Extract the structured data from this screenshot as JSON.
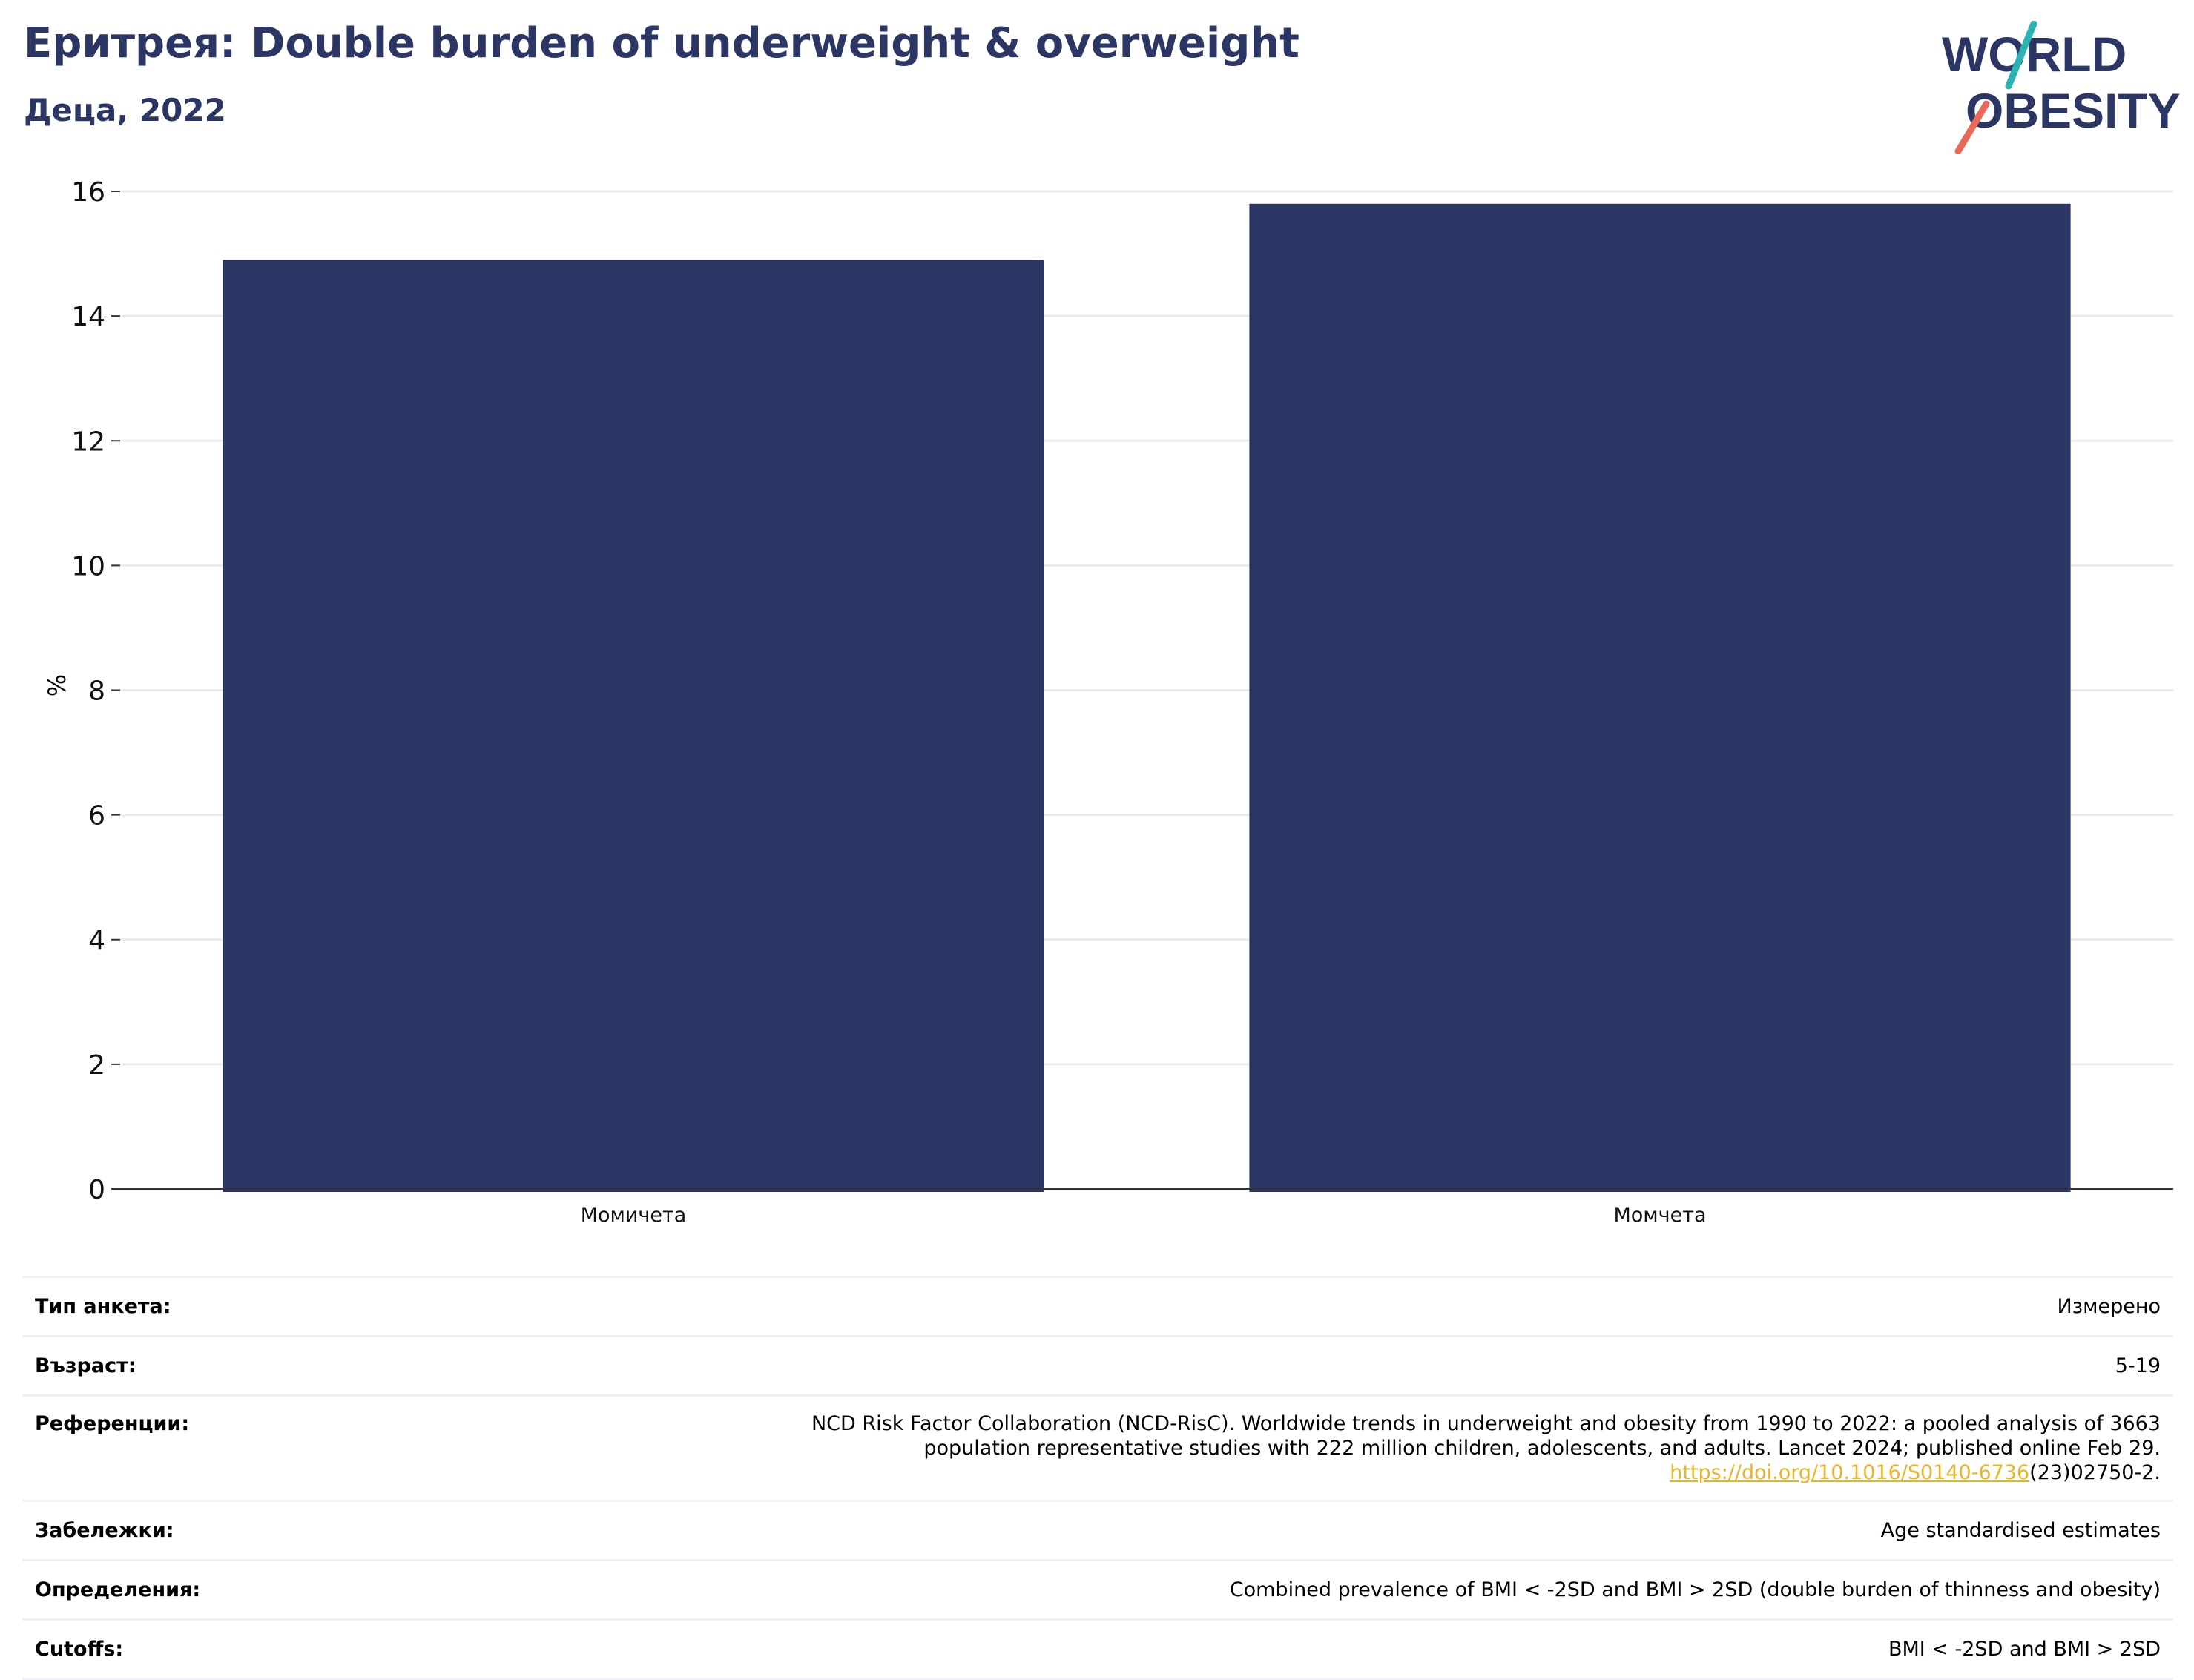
{
  "header": {
    "title": "Еритрея: Double burden of underweight & overweight",
    "subtitle": "Деца, 2022"
  },
  "logo": {
    "line1": "WORLD",
    "line2": "OBESITY",
    "colors": {
      "text": "#2b3664",
      "slash_teal": "#2bb3b1",
      "slash_coral": "#e8685a"
    }
  },
  "chart_data": {
    "type": "bar",
    "categories": [
      "Момичета",
      "Момчета"
    ],
    "values": [
      14.9,
      15.8
    ],
    "ylabel": "%",
    "xlabel": "",
    "ylim": [
      0,
      16
    ],
    "yticks": [
      0,
      2,
      4,
      6,
      8,
      10,
      12,
      14,
      16
    ],
    "grid": true,
    "bar_color": "#2b3664"
  },
  "info": {
    "survey_type_label": "Тип анкета:",
    "survey_type_value": "Измерено",
    "age_label": "Възраст:",
    "age_value": "5-19",
    "references_label": "Референции:",
    "references_line1": "NCD Risk Factor Collaboration (NCD-RisC). Worldwide trends in underweight and obesity from 1990 to 2022: a pooled analysis of 3663",
    "references_line2": "population representative studies with 222 million children, adolescents, and adults. Lancet 2024; published online Feb 29.",
    "references_link": "https://doi.org/10.1016/S0140-6736",
    "references_link_suffix": "(23)02750-2.",
    "notes_label": "Забележки:",
    "notes_value": "Age standardised estimates",
    "definitions_label": "Определения:",
    "definitions_value": "Combined prevalence of BMI < -2SD and BMI > 2SD (double burden of thinness and obesity)",
    "cutoffs_label": "Cutoffs:",
    "cutoffs_value": "BMI < -2SD and BMI > 2SD"
  }
}
